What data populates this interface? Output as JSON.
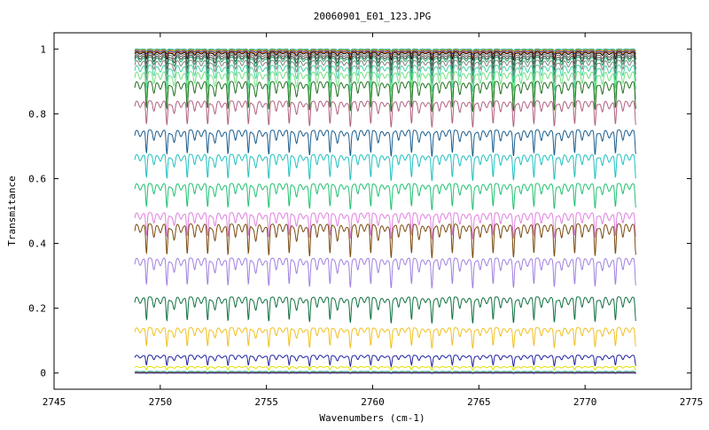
{
  "chart_data": {
    "type": "line",
    "title": "20060901_E01_123.JPG",
    "xlabel": "Wavenumbers (cm-1)",
    "ylabel": "Transmitance",
    "xlim": [
      2745,
      2775
    ],
    "ylim": [
      -0.05,
      1.05
    ],
    "x_ticks": [
      "2745",
      "2750",
      "2755",
      "2760",
      "2765",
      "2770",
      "2775"
    ],
    "y_ticks": [
      "0",
      "0.2",
      "0.4",
      "0.6",
      "0.8",
      "1"
    ],
    "x_range": [
      2748.8,
      2772.4
    ],
    "grid": false,
    "legend": "none",
    "series": [
      {
        "baseline": 1.0,
        "depth": 0.005,
        "color": "#00a0a0"
      },
      {
        "baseline": 0.998,
        "depth": 0.008,
        "color": "#e0b000"
      },
      {
        "baseline": 0.995,
        "depth": 0.01,
        "color": "#2020a0"
      },
      {
        "baseline": 0.992,
        "depth": 0.015,
        "color": "#e06000"
      },
      {
        "baseline": 0.99,
        "depth": 0.02,
        "color": "#000000"
      },
      {
        "baseline": 0.985,
        "depth": 0.03,
        "color": "#606060"
      },
      {
        "baseline": 0.98,
        "depth": 0.04,
        "color": "#404040"
      },
      {
        "baseline": 0.975,
        "depth": 0.05,
        "color": "#20a060"
      },
      {
        "baseline": 0.965,
        "depth": 0.06,
        "color": "#808080"
      },
      {
        "baseline": 0.95,
        "depth": 0.07,
        "color": "#40d0a0"
      },
      {
        "baseline": 0.93,
        "depth": 0.08,
        "color": "#70e080"
      },
      {
        "baseline": 0.9,
        "depth": 0.08,
        "color": "#207020"
      },
      {
        "baseline": 0.84,
        "depth": 0.07,
        "color": "#b06080"
      },
      {
        "baseline": 0.75,
        "depth": 0.07,
        "color": "#1a5c8c"
      },
      {
        "baseline": 0.675,
        "depth": 0.07,
        "color": "#20c0c0"
      },
      {
        "baseline": 0.585,
        "depth": 0.07,
        "color": "#20c070"
      },
      {
        "baseline": 0.495,
        "depth": 0.07,
        "color": "#e080e0"
      },
      {
        "baseline": 0.46,
        "depth": 0.09,
        "color": "#7a4a10"
      },
      {
        "baseline": 0.355,
        "depth": 0.08,
        "color": "#a080e0"
      },
      {
        "baseline": 0.235,
        "depth": 0.07,
        "color": "#107040"
      },
      {
        "baseline": 0.14,
        "depth": 0.055,
        "color": "#f0c020"
      },
      {
        "baseline": 0.055,
        "depth": 0.03,
        "color": "#2020a0"
      },
      {
        "baseline": 0.02,
        "depth": 0.01,
        "color": "#e0e000"
      },
      {
        "baseline": 0.005,
        "depth": 0.003,
        "color": "#00a0a0"
      },
      {
        "baseline": 0.002,
        "depth": 0.002,
        "color": "#e06000"
      },
      {
        "baseline": 0.0,
        "depth": 0.001,
        "color": "#2020a0"
      }
    ]
  }
}
